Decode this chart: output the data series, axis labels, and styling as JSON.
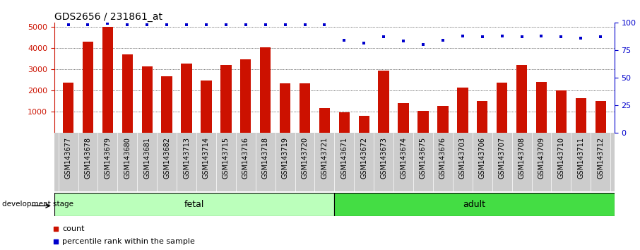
{
  "title": "GDS2656 / 231861_at",
  "categories": [
    "GSM143677",
    "GSM143678",
    "GSM143679",
    "GSM143680",
    "GSM143681",
    "GSM143682",
    "GSM143713",
    "GSM143714",
    "GSM143715",
    "GSM143716",
    "GSM143718",
    "GSM143719",
    "GSM143720",
    "GSM143721",
    "GSM143671",
    "GSM143672",
    "GSM143673",
    "GSM143674",
    "GSM143675",
    "GSM143676",
    "GSM143703",
    "GSM143706",
    "GSM143707",
    "GSM143708",
    "GSM143709",
    "GSM143710",
    "GSM143711",
    "GSM143712"
  ],
  "bar_values": [
    2350,
    4300,
    4980,
    3680,
    3130,
    2650,
    3270,
    2450,
    3200,
    3460,
    4020,
    2340,
    2320,
    1150,
    950,
    800,
    2920,
    1380,
    1020,
    1270,
    2120,
    1490,
    2360,
    3180,
    2380,
    2000,
    1610,
    1500
  ],
  "percentile_values": [
    98,
    98,
    99,
    98,
    98,
    98,
    98,
    98,
    98,
    98,
    98,
    98,
    98,
    98,
    84,
    81,
    87,
    83,
    80,
    84,
    88,
    87,
    88,
    87,
    88,
    87,
    86,
    87
  ],
  "fetal_count": 14,
  "adult_count": 14,
  "bar_color": "#cc1100",
  "percentile_color": "#0000cc",
  "fetal_color": "#bbffbb",
  "adult_color": "#44dd44",
  "ylabel_left": "",
  "ylabel_right": "",
  "ylim_left": [
    0,
    5200
  ],
  "ylim_right": [
    0,
    100
  ],
  "yticks_left": [
    1000,
    2000,
    3000,
    4000,
    5000
  ],
  "yticks_right": [
    0,
    25,
    50,
    75,
    100
  ],
  "legend_count_label": "count",
  "legend_pct_label": "percentile rank within the sample",
  "development_stage_label": "development stage",
  "fetal_label": "fetal",
  "adult_label": "adult",
  "tick_bg_color": "#cccccc",
  "grid_color": "#000000",
  "title_fontsize": 10,
  "tick_fontsize": 7
}
